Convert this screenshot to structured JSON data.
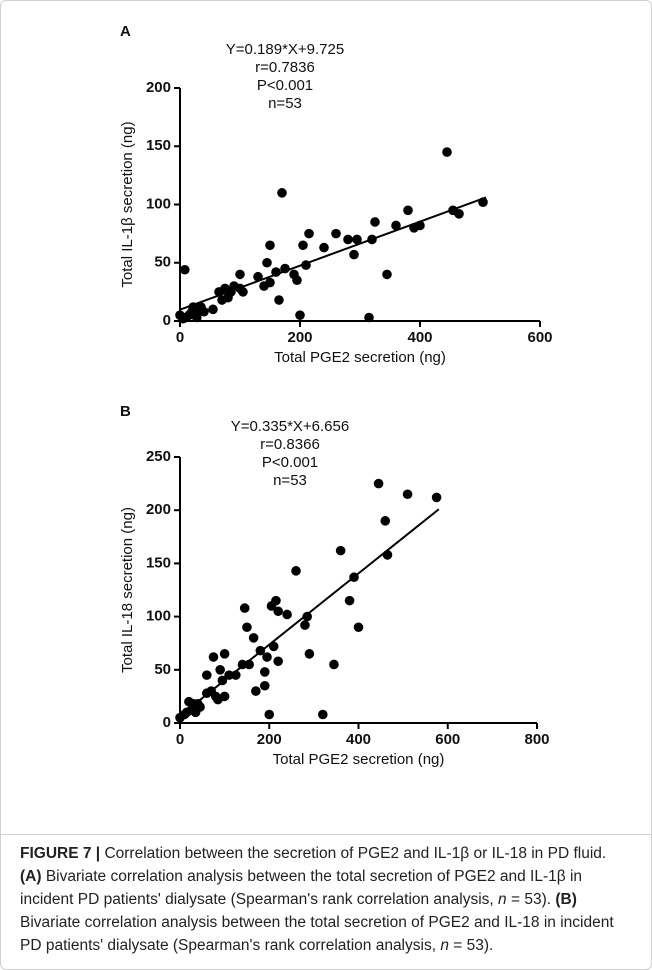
{
  "chart_data": [
    {
      "type": "scatter",
      "panel": "A",
      "annotations": [
        "Y=0.189*X+9.725",
        "r=0.7836",
        "P<0.001",
        "n=53"
      ],
      "xlabel": "Total PGE2 secretion (ng)",
      "ylabel": "Total IL-1β secretion (ng)",
      "xlim": [
        0,
        600
      ],
      "ylim": [
        0,
        200
      ],
      "xticks": [
        0,
        200,
        400,
        600
      ],
      "yticks": [
        0,
        50,
        100,
        150,
        200
      ],
      "color": "#000000",
      "x": [
        0,
        5,
        8,
        10,
        15,
        20,
        22,
        28,
        30,
        35,
        40,
        55,
        65,
        70,
        75,
        80,
        85,
        90,
        100,
        100,
        105,
        130,
        140,
        145,
        150,
        150,
        160,
        165,
        170,
        175,
        190,
        195,
        200,
        205,
        210,
        215,
        240,
        260,
        280,
        290,
        295,
        315,
        320,
        325,
        345,
        360,
        380,
        390,
        400,
        445,
        455,
        465,
        505
      ],
      "series": [
        {
          "values": [
            5,
            2,
            44,
            3,
            5,
            8,
            12,
            3,
            10,
            12,
            8,
            10,
            25,
            18,
            28,
            20,
            25,
            30,
            28,
            40,
            25,
            38,
            30,
            50,
            33,
            65,
            42,
            18,
            110,
            45,
            40,
            35,
            5,
            65,
            48,
            75,
            63,
            75,
            70,
            57,
            70,
            3,
            70,
            85,
            40,
            82,
            95,
            80,
            82,
            145,
            95,
            92,
            102
          ]
        }
      ],
      "fit_line": {
        "x": [
          0,
          510
        ],
        "y": [
          9.725,
          106.1
        ]
      }
    },
    {
      "type": "scatter",
      "panel": "B",
      "annotations": [
        "Y=0.335*X+6.656",
        "r=0.8366",
        "P<0.001",
        "n=53"
      ],
      "xlabel": "Total PGE2 secretion (ng)",
      "ylabel": "Total IL-18 secretion (ng)",
      "xlim": [
        0,
        800
      ],
      "ylim": [
        0,
        250
      ],
      "xticks": [
        0,
        200,
        400,
        600,
        800
      ],
      "yticks": [
        0,
        50,
        100,
        150,
        200,
        250
      ],
      "color": "#000000",
      "x": [
        0,
        10,
        15,
        20,
        25,
        30,
        35,
        40,
        45,
        60,
        60,
        70,
        75,
        80,
        85,
        90,
        95,
        100,
        100,
        110,
        125,
        140,
        145,
        150,
        155,
        165,
        170,
        180,
        190,
        190,
        195,
        200,
        205,
        210,
        215,
        220,
        240,
        260,
        280,
        285,
        290,
        320,
        345,
        360,
        380,
        390,
        400,
        445,
        460,
        465,
        510,
        575,
        220
      ],
      "series": [
        {
          "values": [
            5,
            8,
            10,
            20,
            12,
            18,
            10,
            18,
            15,
            28,
            45,
            30,
            62,
            25,
            22,
            50,
            40,
            65,
            25,
            45,
            45,
            55,
            108,
            90,
            55,
            80,
            30,
            68,
            35,
            48,
            62,
            8,
            110,
            72,
            115,
            105,
            102,
            143,
            92,
            100,
            65,
            8,
            55,
            162,
            115,
            137,
            90,
            225,
            190,
            158,
            215,
            212,
            58
          ]
        }
      ],
      "fit_line": {
        "x": [
          0,
          580
        ],
        "y": [
          6.656,
          200.9
        ]
      }
    }
  ],
  "caption": [
    {
      "text": "FIGURE 7 |",
      "bold": true
    },
    {
      "text": " Correlation between the secretion of PGE2 and IL-1β or IL-18 in PD fluid. "
    },
    {
      "text": "(A)",
      "bold": true
    },
    {
      "text": " Bivariate correlation analysis between the total secretion of PGE2 and IL-1β in incident PD patients' dialysate (Spearman's rank correlation analysis, "
    },
    {
      "text": "n",
      "italic": true
    },
    {
      "text": " = 53). "
    },
    {
      "text": "(B)",
      "bold": true
    },
    {
      "text": " Bivariate correlation analysis between the total secretion of PGE2 and IL-18 in incident PD patients' dialysate (Spearman's rank correlation analysis, "
    },
    {
      "text": "n",
      "italic": true
    },
    {
      "text": " = 53)."
    }
  ]
}
